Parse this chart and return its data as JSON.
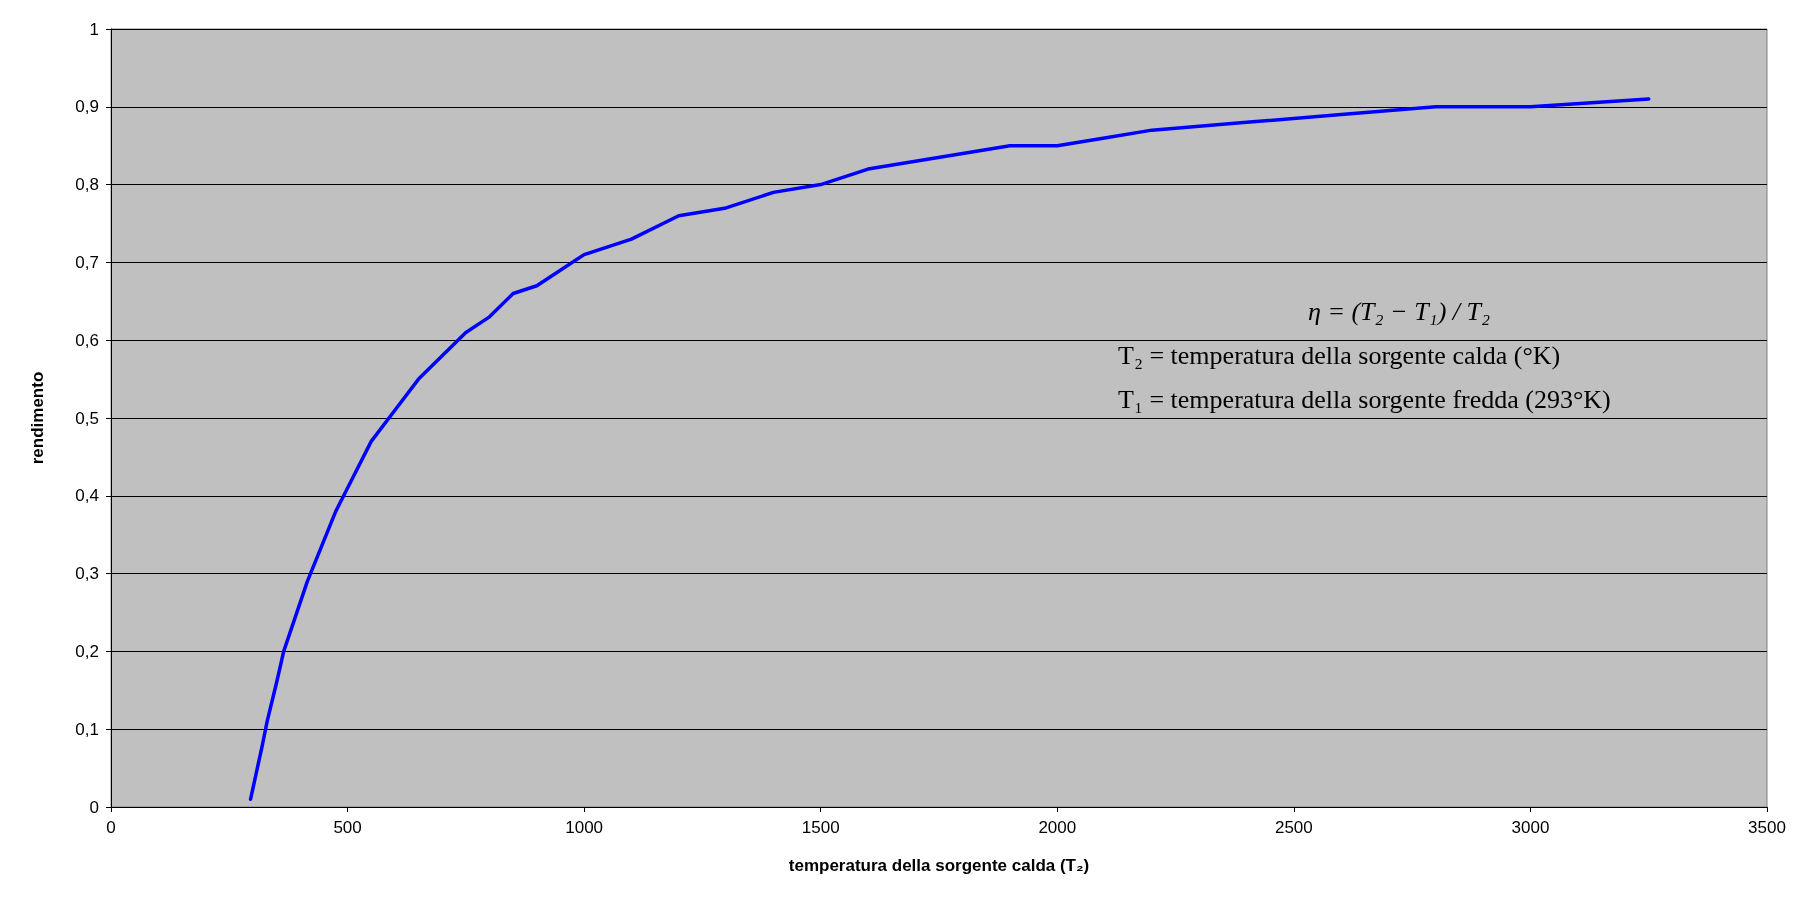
{
  "chart_data": {
    "type": "line",
    "xlabel": "temperatura della sorgente calda (T₂)",
    "ylabel": "rendimento",
    "annotations": [
      "η = (T₂ − T₁) / T₂",
      "T₂ = temperatura della sorgente calda (°K)",
      "T₁ = temperatura della sorgente fredda (293°K)"
    ],
    "x": [
      295,
      320,
      330,
      350,
      365,
      415,
      475,
      500,
      550,
      600,
      650,
      700,
      750,
      800,
      850,
      900,
      1000,
      1100,
      1200,
      1300,
      1400,
      1500,
      1600,
      1700,
      1800,
      1900,
      2000,
      2100,
      2200,
      2400,
      2600,
      2800,
      3000,
      3250
    ],
    "series": [
      {
        "color": "#0000ff",
        "values": [
          0.01,
          0.08,
          0.11,
          0.16,
          0.2,
          0.29,
          0.38,
          0.41,
          0.47,
          0.51,
          0.55,
          0.58,
          0.61,
          0.63,
          0.66,
          0.67,
          0.71,
          0.73,
          0.76,
          0.77,
          0.79,
          0.8,
          0.82,
          0.83,
          0.84,
          0.85,
          0.85,
          0.86,
          0.87,
          0.88,
          0.89,
          0.9,
          0.9,
          0.91
        ]
      }
    ],
    "xlim": [
      0,
      3500
    ],
    "xticks": [
      0,
      500,
      1000,
      1500,
      2000,
      2500,
      3000,
      3500
    ],
    "ylim": [
      0,
      1
    ],
    "yticks": [
      0,
      {
        "value": 0.1,
        "label": "0,1"
      },
      {
        "value": 0.2,
        "label": "0,2"
      },
      {
        "value": 0.3,
        "label": "0,3"
      },
      {
        "value": 0.4,
        "label": "0,4"
      },
      {
        "value": 0.5,
        "label": "0,5"
      },
      {
        "value": 0.6,
        "label": "0,6"
      },
      {
        "value": 0.7,
        "label": "0,7"
      },
      {
        "value": 0.8,
        "label": "0,8"
      },
      {
        "value": 0.9,
        "label": "0,9"
      },
      1
    ],
    "grid": "y",
    "marker": "none",
    "line_style": "solid"
  }
}
